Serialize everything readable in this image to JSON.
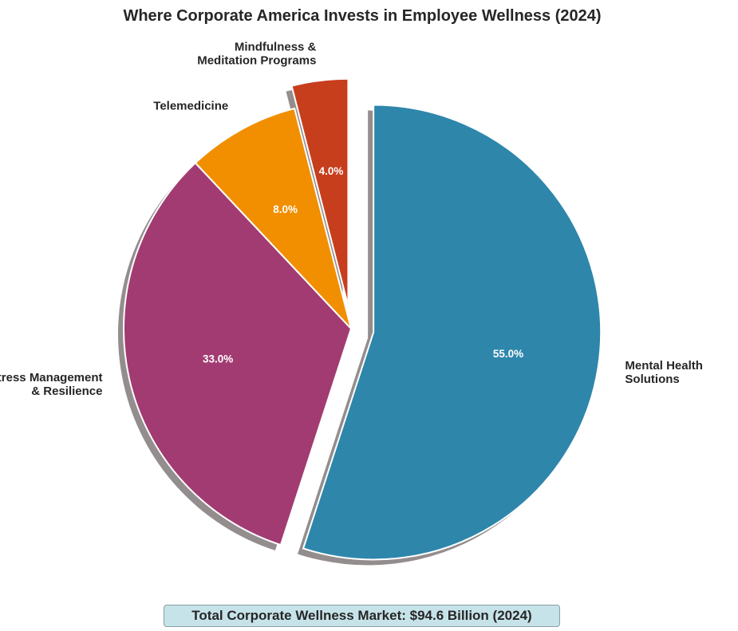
{
  "chart_data": {
    "type": "pie",
    "title": "Where Corporate America Invests in Employee Wellness (2024)",
    "slices": [
      {
        "label": [
          "Mental Health",
          "Solutions"
        ],
        "value": 55.0,
        "pct_label": "55.0%",
        "color": "#2e86ab",
        "exploded": true
      },
      {
        "label": [
          "Stress Management",
          "& Resilience"
        ],
        "value": 33.0,
        "pct_label": "33.0%",
        "color": "#a23b72",
        "exploded": false
      },
      {
        "label": [
          "Telemedicine"
        ],
        "value": 8.0,
        "pct_label": "8.0%",
        "color": "#f18f01",
        "exploded": false
      },
      {
        "label": [
          "Mindfulness &",
          "Meditation Programs"
        ],
        "value": 4.0,
        "pct_label": "4.0%",
        "color": "#c73e1d",
        "exploded": true
      }
    ],
    "start_angle_deg": 90,
    "direction": "clockwise",
    "shadow": true,
    "grid": false,
    "legend": "none"
  },
  "footer": {
    "text": "Total Corporate Wellness Market: $94.6 Billion (2024)"
  }
}
